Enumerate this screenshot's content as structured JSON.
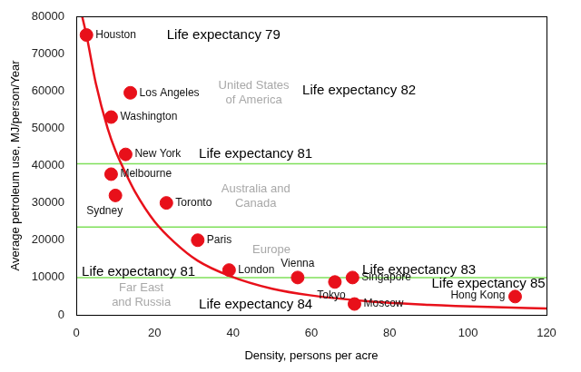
{
  "chart_data": {
    "type": "scatter",
    "x_label": "Density, persons per acre",
    "y_label": "Average petroleum use, MJ/person/Year",
    "xlim": [
      0,
      120
    ],
    "xticks": [
      0,
      20,
      40,
      60,
      80,
      100,
      120
    ],
    "ylim": [
      0,
      80000
    ],
    "yticks": [
      0,
      10000,
      20000,
      30000,
      40000,
      50000,
      60000,
      70000,
      80000
    ],
    "grid": false,
    "series": [
      {
        "type": "scatter",
        "color": "#e8101a",
        "marker": "circle",
        "labels": [
          "Houston",
          "Los Angeles",
          "Washington",
          "New York",
          "Melbourne",
          "Sydney",
          "Toronto",
          "Paris",
          "London",
          "Vienna",
          "Tokyo",
          "Singapore",
          "Moscow",
          "Hong Kong"
        ],
        "x": [
          2.6,
          13.8,
          8.9,
          12.6,
          8.9,
          10,
          23,
          31,
          39,
          56.5,
          66,
          70.5,
          71,
          112
        ],
        "values": [
          75000,
          59500,
          53000,
          43000,
          37700,
          32000,
          30000,
          20000,
          12000,
          10000,
          8800,
          10000,
          2900,
          4900
        ]
      },
      {
        "type": "line",
        "color": "#e8101a",
        "line_style": "solid",
        "x": [
          1.5,
          2.6,
          5,
          8,
          10,
          12.6,
          15,
          20,
          25,
          31,
          39,
          50,
          60,
          75,
          90,
          105,
          120
        ],
        "values": [
          80000,
          75000,
          62000,
          50000,
          44000,
          38000,
          33000,
          25000,
          19500,
          14500,
          10500,
          7000,
          5200,
          3600,
          2700,
          2100,
          1700
        ]
      }
    ],
    "reference_lines": {
      "color": "#7fe05a",
      "values": [
        40500,
        23500,
        10000
      ]
    },
    "region_labels": {
      "color": "#a8a8a8",
      "items": [
        {
          "text": [
            "United States",
            "of America"
          ],
          "x": 45.3,
          "y": 59500
        },
        {
          "text": [
            "Australia and",
            "Canada"
          ],
          "x": 45.8,
          "y": 31800
        },
        {
          "text": [
            "Europe"
          ],
          "x": 49.8,
          "y": 17400
        },
        {
          "text": [
            "Far East",
            "and Russia"
          ],
          "x": 16.6,
          "y": 5200
        }
      ]
    },
    "annotations": {
      "color": "#000000",
      "items": [
        {
          "text": "Life expectancy 79",
          "x": 23.1,
          "y": 75000
        },
        {
          "text": "Life expectancy 82",
          "x": 57.7,
          "y": 60000
        },
        {
          "text": "Life expectancy 81",
          "x": 31.3,
          "y": 43000
        },
        {
          "text": "Life expectancy 81",
          "x": 1.4,
          "y": 11500
        },
        {
          "text": "Life expectancy 83",
          "x": 73,
          "y": 12000
        },
        {
          "text": "Life expectancy 85",
          "x": 90.7,
          "y": 8300
        },
        {
          "text": "Life expectancy 84",
          "x": 31.3,
          "y": 2700
        }
      ]
    }
  }
}
